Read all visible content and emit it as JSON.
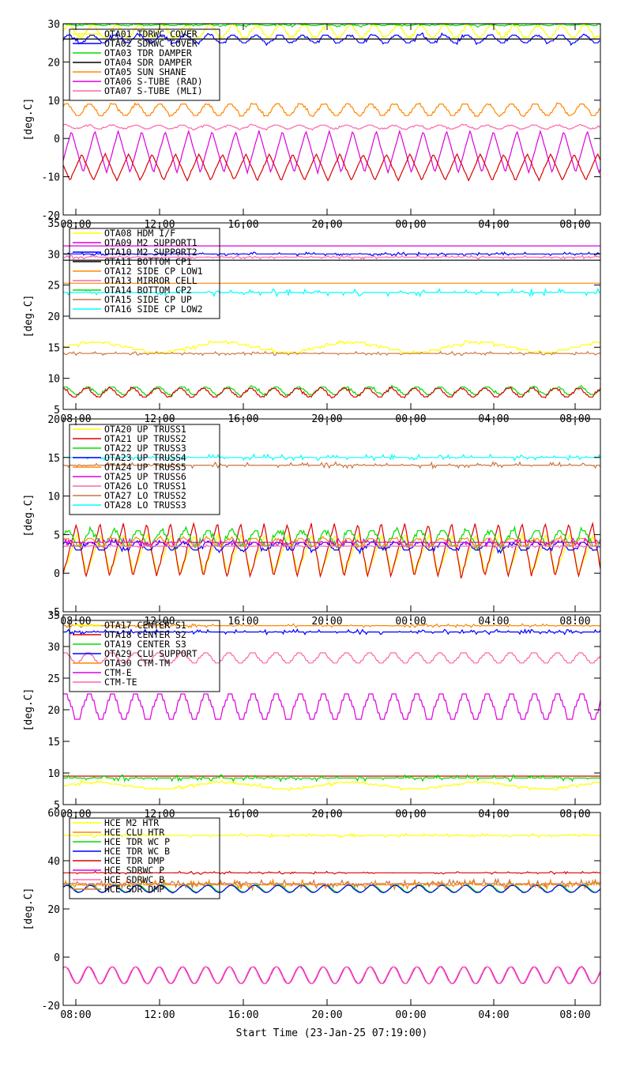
{
  "x_axis": {
    "title": "Start Time (23-Jan-25 07:19:00)",
    "tick_labels": [
      "08:00",
      "12:00",
      "16:00",
      "20:00",
      "00:00",
      "04:00",
      "08:00"
    ]
  },
  "chart_data": [
    {
      "type": "line",
      "ylabel": "[deg.C]",
      "ylim": [
        -20,
        30
      ],
      "yticks": [
        -20,
        -10,
        0,
        10,
        20,
        30
      ],
      "legend": "top-left",
      "series": [
        {
          "name": "OTA01 TDRWC COVER",
          "color": "#ffff00",
          "base": 28,
          "amp": 1.5,
          "period": 1.1,
          "style": "step",
          "noise": 0.5
        },
        {
          "name": "OTA02 SDRWC COVER",
          "color": "#0000ff",
          "base": 26,
          "amp": 1.0,
          "period": 1.1,
          "style": "step",
          "noise": 0.6
        },
        {
          "name": "OTA03 TDR DAMPER",
          "color": "#00dd00",
          "base": 29.7,
          "amp": 0.2,
          "period": 1.1,
          "style": "step",
          "noise": 0.4
        },
        {
          "name": "OTA04 SDR DAMPER",
          "color": "#000000",
          "base": 26,
          "amp": 0.0,
          "period": 1.1,
          "style": "flat",
          "noise": 0.0
        },
        {
          "name": "OTA05 SUN SHANE",
          "color": "#ff8800",
          "base": 7.5,
          "amp": 1.5,
          "period": 1.1,
          "style": "step",
          "noise": 0.3
        },
        {
          "name": "OTA06 S-TUBE (RAD)",
          "color": "#dd00dd",
          "base": -3.5,
          "amp": 5.5,
          "period": 1.1,
          "style": "tri",
          "noise": 0.2
        },
        {
          "name": "OTA07 S-TUBE (MLI)",
          "color": "#ff66aa",
          "base": 3,
          "amp": 0.5,
          "period": 1.1,
          "style": "step",
          "noise": 0.3
        },
        {
          "name": "",
          "color": "#dd0000",
          "base": -7.5,
          "amp": 3.5,
          "period": 1.1,
          "style": "tri",
          "noise": 0.3,
          "phase": 0.5
        }
      ]
    },
    {
      "type": "line",
      "ylabel": "[deg.C]",
      "ylim": [
        5,
        35
      ],
      "yticks": [
        5,
        10,
        15,
        20,
        25,
        30,
        35
      ],
      "legend": "top-left",
      "series": [
        {
          "name": "OTA08 HDM I/F",
          "color": "#ffff00",
          "base": 15,
          "amp": 0.8,
          "period": 6,
          "style": "step",
          "noise": 0.3
        },
        {
          "name": "OTA09 M2 SUPPORT1",
          "color": "#dd00dd",
          "base": 31.3,
          "amp": 0,
          "period": 1.1,
          "style": "flat",
          "noise": 0.0
        },
        {
          "name": "OTA10 M2 SUPPORT2",
          "color": "#0000ff",
          "base": 30,
          "amp": 0,
          "period": 1.1,
          "style": "flat",
          "noise": 0.3
        },
        {
          "name": "OTA11 BOTTOM CP1",
          "color": "#000000",
          "base": 29,
          "amp": 0,
          "period": 1.1,
          "style": "flat",
          "noise": 0.0
        },
        {
          "name": "OTA12 SIDE CP LOW1",
          "color": "#ff8800",
          "base": 25.3,
          "amp": 0,
          "period": 1.1,
          "style": "flat",
          "noise": 0.0
        },
        {
          "name": "OTA13 MIRROR CELL",
          "color": "#ff66aa",
          "base": 29.5,
          "amp": 0,
          "period": 1.1,
          "style": "flat",
          "noise": 0.3
        },
        {
          "name": "OTA14 BOTTOM CP2",
          "color": "#00dd00",
          "base": 8,
          "amp": 0.6,
          "period": 1.1,
          "style": "step",
          "noise": 0.3
        },
        {
          "name": "OTA15 SIDE CP UP",
          "color": "#cc7744",
          "base": 14,
          "amp": 0.3,
          "period": 1.1,
          "style": "flat",
          "noise": 0.3
        },
        {
          "name": "OTA16 SIDE CP LOW2",
          "color": "#00ffff",
          "base": 23.8,
          "amp": 0,
          "period": 1.1,
          "style": "flat",
          "noise": 0.6
        },
        {
          "name": "",
          "color": "#dd0000",
          "base": 7.7,
          "amp": 0.7,
          "period": 1.1,
          "style": "step",
          "noise": 0.2
        }
      ]
    },
    {
      "type": "line",
      "ylabel": "[deg.C]",
      "ylim": [
        -5,
        20
      ],
      "yticks": [
        -5,
        0,
        5,
        10,
        15,
        20
      ],
      "legend": "top-left",
      "series": [
        {
          "name": "OTA20 UP TRUSS1",
          "color": "#ffff00",
          "base": 2.5,
          "amp": 2.5,
          "period": 1.1,
          "style": "saw",
          "noise": 0.3
        },
        {
          "name": "OTA21 UP TRUSS2",
          "color": "#dd0000",
          "base": 3,
          "amp": 3.5,
          "period": 1.1,
          "style": "saw",
          "noise": 0.3
        },
        {
          "name": "OTA22 UP TRUSS3",
          "color": "#00dd00",
          "base": 4.5,
          "amp": 1.0,
          "period": 1.1,
          "style": "step",
          "noise": 0.5
        },
        {
          "name": "OTA23 UP TRUSS4",
          "color": "#0000ff",
          "base": 3.5,
          "amp": 0.5,
          "period": 1.1,
          "style": "step",
          "noise": 0.4
        },
        {
          "name": "OTA24 UP TRUSS5",
          "color": "#ff8800",
          "base": 4,
          "amp": 0.5,
          "period": 1.1,
          "style": "step",
          "noise": 0.4
        },
        {
          "name": "OTA25 UP TRUSS6",
          "color": "#dd00dd",
          "base": 4,
          "amp": 0.3,
          "period": 1.1,
          "style": "flat",
          "noise": 0.5
        },
        {
          "name": "OTA26 LO TRUSS1",
          "color": "#ff66aa",
          "base": 3.5,
          "amp": 0,
          "period": 1.1,
          "style": "flat",
          "noise": 0.2
        },
        {
          "name": "OTA27 LO TRUSS2",
          "color": "#cc7744",
          "base": 14,
          "amp": 0,
          "period": 1.1,
          "style": "flat",
          "noise": 0.4
        },
        {
          "name": "OTA28 LO TRUSS3",
          "color": "#00ffff",
          "base": 15,
          "amp": 0,
          "period": 1.1,
          "style": "flat",
          "noise": 0.4
        }
      ]
    },
    {
      "type": "line",
      "ylabel": "[deg.C]",
      "ylim": [
        5,
        35
      ],
      "yticks": [
        5,
        10,
        15,
        20,
        25,
        30,
        35
      ],
      "legend": "top-left",
      "series": [
        {
          "name": "OTA17 CENTER S1",
          "color": "#ffff00",
          "base": 8,
          "amp": 0.5,
          "period": 6,
          "style": "step",
          "noise": 0.3
        },
        {
          "name": "OTA18 CENTER S2",
          "color": "#dd0000",
          "base": 9.5,
          "amp": 0,
          "period": 1.1,
          "style": "flat",
          "noise": 0.0
        },
        {
          "name": "OTA19 CENTER S3",
          "color": "#00dd00",
          "base": 9.2,
          "amp": 0.4,
          "period": 1.1,
          "style": "flat",
          "noise": 0.5
        },
        {
          "name": "OTA29 CLU SUPPORT",
          "color": "#0000ff",
          "base": 32.3,
          "amp": 0,
          "period": 1.1,
          "style": "flat",
          "noise": 0.4
        },
        {
          "name": "OTA30 CTM-TM",
          "color": "#ff8800",
          "base": 33.3,
          "amp": 0,
          "period": 1.1,
          "style": "flat",
          "noise": 0.3
        },
        {
          "name": "CTM-E",
          "color": "#dd00dd",
          "base": 20.5,
          "amp": 2.0,
          "period": 1.1,
          "style": "step",
          "noise": 0.0
        },
        {
          "name": "CTM-TE",
          "color": "#ff66aa",
          "base": 28.2,
          "amp": 0.8,
          "period": 1.1,
          "style": "step",
          "noise": 0.0
        }
      ]
    },
    {
      "type": "line",
      "ylabel": "[deg.C]",
      "ylim": [
        -20,
        60
      ],
      "yticks": [
        -20,
        0,
        20,
        40,
        60
      ],
      "legend": "top-left",
      "series": [
        {
          "name": "HCE M2 HTR",
          "color": "#ffff00",
          "base": 50.5,
          "amp": 0,
          "period": 1.1,
          "style": "flat",
          "noise": 0.8
        },
        {
          "name": "HCE CLU HTR",
          "color": "#ff8800",
          "base": 30,
          "amp": 1.0,
          "period": 1.1,
          "style": "flat",
          "noise": 2.2
        },
        {
          "name": "HCE TDR WC P",
          "color": "#00dd00",
          "base": 28.5,
          "amp": 1.5,
          "period": 1.1,
          "style": "sin",
          "noise": 0.2
        },
        {
          "name": "HCE TDR WC B",
          "color": "#0000ff",
          "base": 28.3,
          "amp": 1.5,
          "period": 1.1,
          "style": "sin",
          "noise": 0.2
        },
        {
          "name": "HCE TDR DMP",
          "color": "#dd0000",
          "base": 35,
          "amp": 0,
          "period": 1.1,
          "style": "flat",
          "noise": 0.6
        },
        {
          "name": "HCE SDRWC P",
          "color": "#dd00dd",
          "base": -7.5,
          "amp": 3.5,
          "period": 1.1,
          "style": "sin",
          "noise": 0.2
        },
        {
          "name": "HCE SDRWC B",
          "color": "#ff66aa",
          "base": -7.5,
          "amp": 3.5,
          "period": 1.1,
          "style": "sin",
          "noise": 0.2
        },
        {
          "name": "HCE SDR DMP",
          "color": "#cc7744",
          "base": 30.5,
          "amp": 0.5,
          "period": 1.1,
          "style": "flat",
          "noise": 1.8
        }
      ]
    }
  ]
}
